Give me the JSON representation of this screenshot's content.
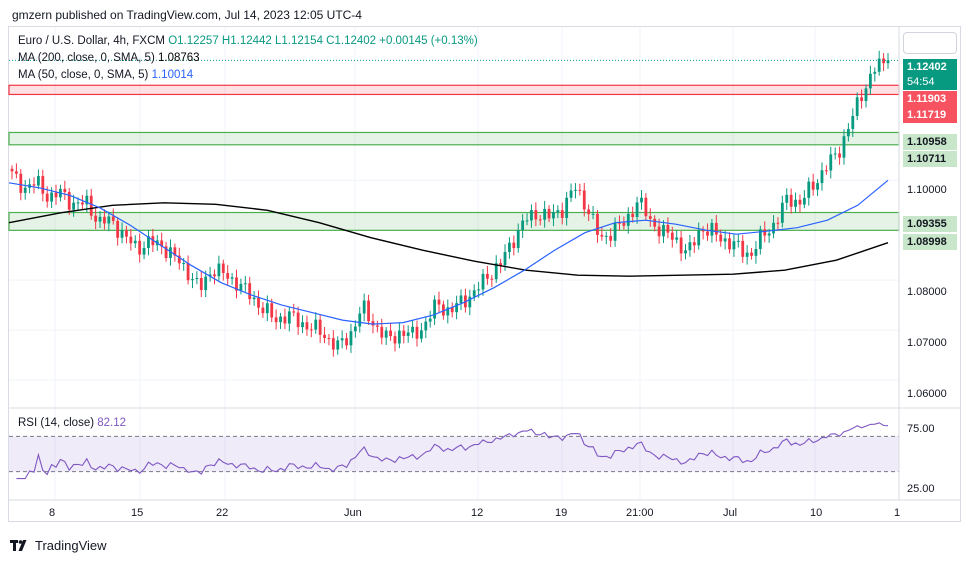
{
  "header": {
    "publish_line": "gmzern published on TradingView.com, Jul 14, 2023 12:05 UTC-4"
  },
  "legend": {
    "symbol": "Euro / U.S. Dollar, 4h, FXCM",
    "open": "O1.12257",
    "high": "H1.12442",
    "low": "L1.12154",
    "close": "C1.12402",
    "change": "+0.00145 (+0.13%)",
    "ma200_label": "MA (200, close, 0, SMA, 5)",
    "ma200_value": "1.08763",
    "ma50_label": "MA (50, close, 0, SMA, 5)",
    "ma50_value": "1.10014",
    "rsi_label": "RSI (14, close)",
    "rsi_value": "82.12"
  },
  "price_labels": {
    "last": "1.12402",
    "countdown": "54:54",
    "zone1_top": "1.11903",
    "zone1_bottom": "1.11719",
    "zone2_top": "1.10958",
    "zone2_bottom": "1.10711",
    "zone3_top": "1.09355",
    "zone3_bottom": "1.08998"
  },
  "footer": {
    "brand": "TradingView"
  },
  "colors": {
    "up": "#089981",
    "down": "#f23645",
    "ma50": "#2962ff",
    "ma200": "#000000",
    "rsi": "#7e57c2",
    "zone_green": "#4caf50",
    "zone_red": "#f23645"
  },
  "chart_data": {
    "type": "candlestick",
    "price_axis": {
      "range": [
        1.055,
        1.1305
      ],
      "ticks": [
        1.06,
        1.07,
        1.08,
        1.1
      ],
      "tick_labels": [
        "1.06000",
        "1.07000",
        "1.08000",
        "1.10000"
      ]
    },
    "time_axis": {
      "tick_labels": [
        "8",
        "15",
        "22",
        "Jun",
        "12",
        "19",
        "21:00",
        "Jul",
        "10",
        "1"
      ]
    },
    "zones": [
      {
        "low": 1.11719,
        "high": 1.11903,
        "color": "red"
      },
      {
        "low": 1.10711,
        "high": 1.10958,
        "color": "green"
      },
      {
        "low": 1.08998,
        "high": 1.09355,
        "color": "green"
      }
    ],
    "close_path": [
      1.101,
      1.0985,
      1.0995,
      1.0965,
      1.0975,
      1.095,
      1.0955,
      1.0915,
      1.092,
      1.0885,
      1.0865,
      1.0875,
      1.087,
      1.0845,
      1.082,
      1.078,
      1.0825,
      1.081,
      1.0795,
      1.077,
      1.0745,
      1.072,
      1.073,
      1.0715,
      1.0705,
      1.069,
      1.0665,
      1.069,
      1.0745,
      1.071,
      1.068,
      1.0695,
      1.069,
      1.071,
      1.0755,
      1.0735,
      1.076,
      1.0775,
      1.081,
      1.083,
      1.088,
      1.092,
      1.0935,
      1.0925,
      1.0945,
      1.0985,
      1.0945,
      1.088,
      1.09,
      1.0915,
      1.096,
      1.092,
      1.0895,
      1.0885,
      1.085,
      1.0905,
      1.0895,
      1.088,
      1.0865,
      1.085,
      1.089,
      1.0915,
      1.0965,
      1.0955,
      1.099,
      1.1025,
      1.1055,
      1.1115,
      1.118,
      1.1225,
      1.124
    ],
    "ma50": [
      1.0995,
      1.0985,
      1.097,
      1.0945,
      1.091,
      1.087,
      1.083,
      1.0795,
      1.077,
      1.075,
      1.0735,
      1.072,
      1.0712,
      1.0715,
      1.073,
      1.0755,
      1.0785,
      1.082,
      1.086,
      1.0895,
      1.0915,
      1.092,
      1.0912,
      1.09,
      1.0892,
      1.0898,
      1.0905,
      1.092,
      1.095,
      1.1
    ],
    "ma200": [
      1.0915,
      1.0935,
      1.095,
      1.0955,
      1.0952,
      1.094,
      1.0915,
      1.0885,
      1.086,
      1.0838,
      1.082,
      1.081,
      1.0808,
      1.081,
      1.0812,
      1.082,
      1.084,
      1.0875
    ],
    "rsi": {
      "range": [
        0,
        100
      ],
      "levels": [
        30,
        70
      ],
      "tick_labels": [
        "75.00",
        "25.00"
      ],
      "last": 82.12
    }
  }
}
